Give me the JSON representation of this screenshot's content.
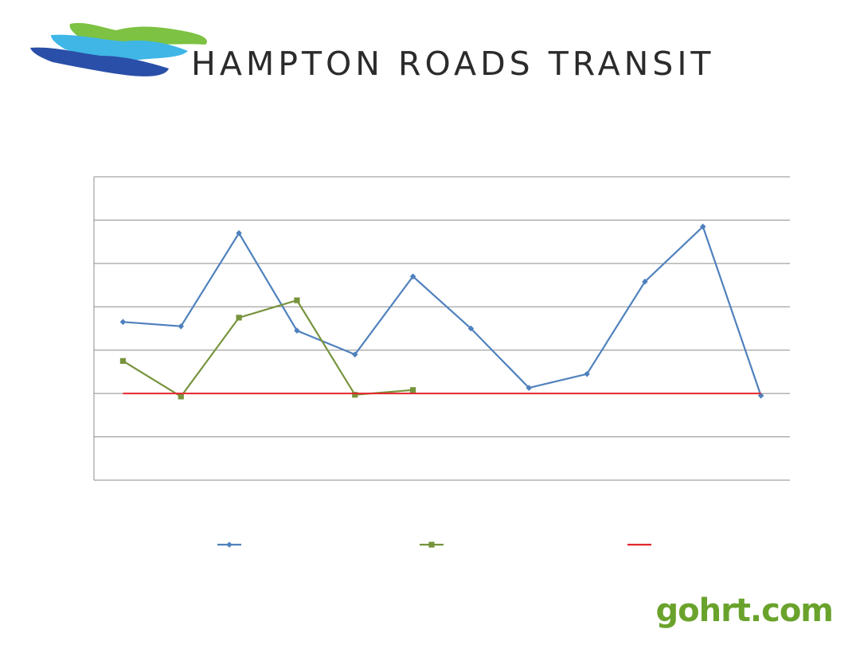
{
  "header": {
    "brand_title": "HAMPTON ROADS TRANSIT",
    "logo_colors": [
      "#7dc242",
      "#3fb6e6",
      "#2a4fa8"
    ]
  },
  "footer": {
    "site_link": "gohrt.com",
    "site_color": "#6aa32c"
  },
  "chart_data": {
    "type": "line",
    "categories": [
      "",
      "",
      "",
      "",
      "",
      "",
      "",
      "",
      "",
      "",
      "",
      ""
    ],
    "ylim": [
      -2,
      5
    ],
    "y_ticks": [
      -2,
      -1,
      0,
      1,
      2,
      3,
      4,
      5
    ],
    "grid": true,
    "legend": "bottom",
    "series": [
      {
        "values": [
          1.65,
          1.55,
          3.7,
          1.45,
          0.9,
          2.7,
          1.5,
          0.13,
          0.45,
          2.58,
          3.85,
          -0.05
        ],
        "color": "#4f81bd",
        "marker": "diamond"
      },
      {
        "values": [
          0.75,
          -0.07,
          1.75,
          2.15,
          -0.03,
          0.08,
          null,
          null,
          null,
          null,
          null,
          null
        ],
        "color": "#77933c",
        "marker": "square"
      },
      {
        "values": [
          0,
          0,
          0,
          0,
          0,
          0,
          0,
          0,
          0,
          0,
          0,
          0
        ],
        "color": "#e3262d",
        "marker": "none"
      }
    ]
  }
}
